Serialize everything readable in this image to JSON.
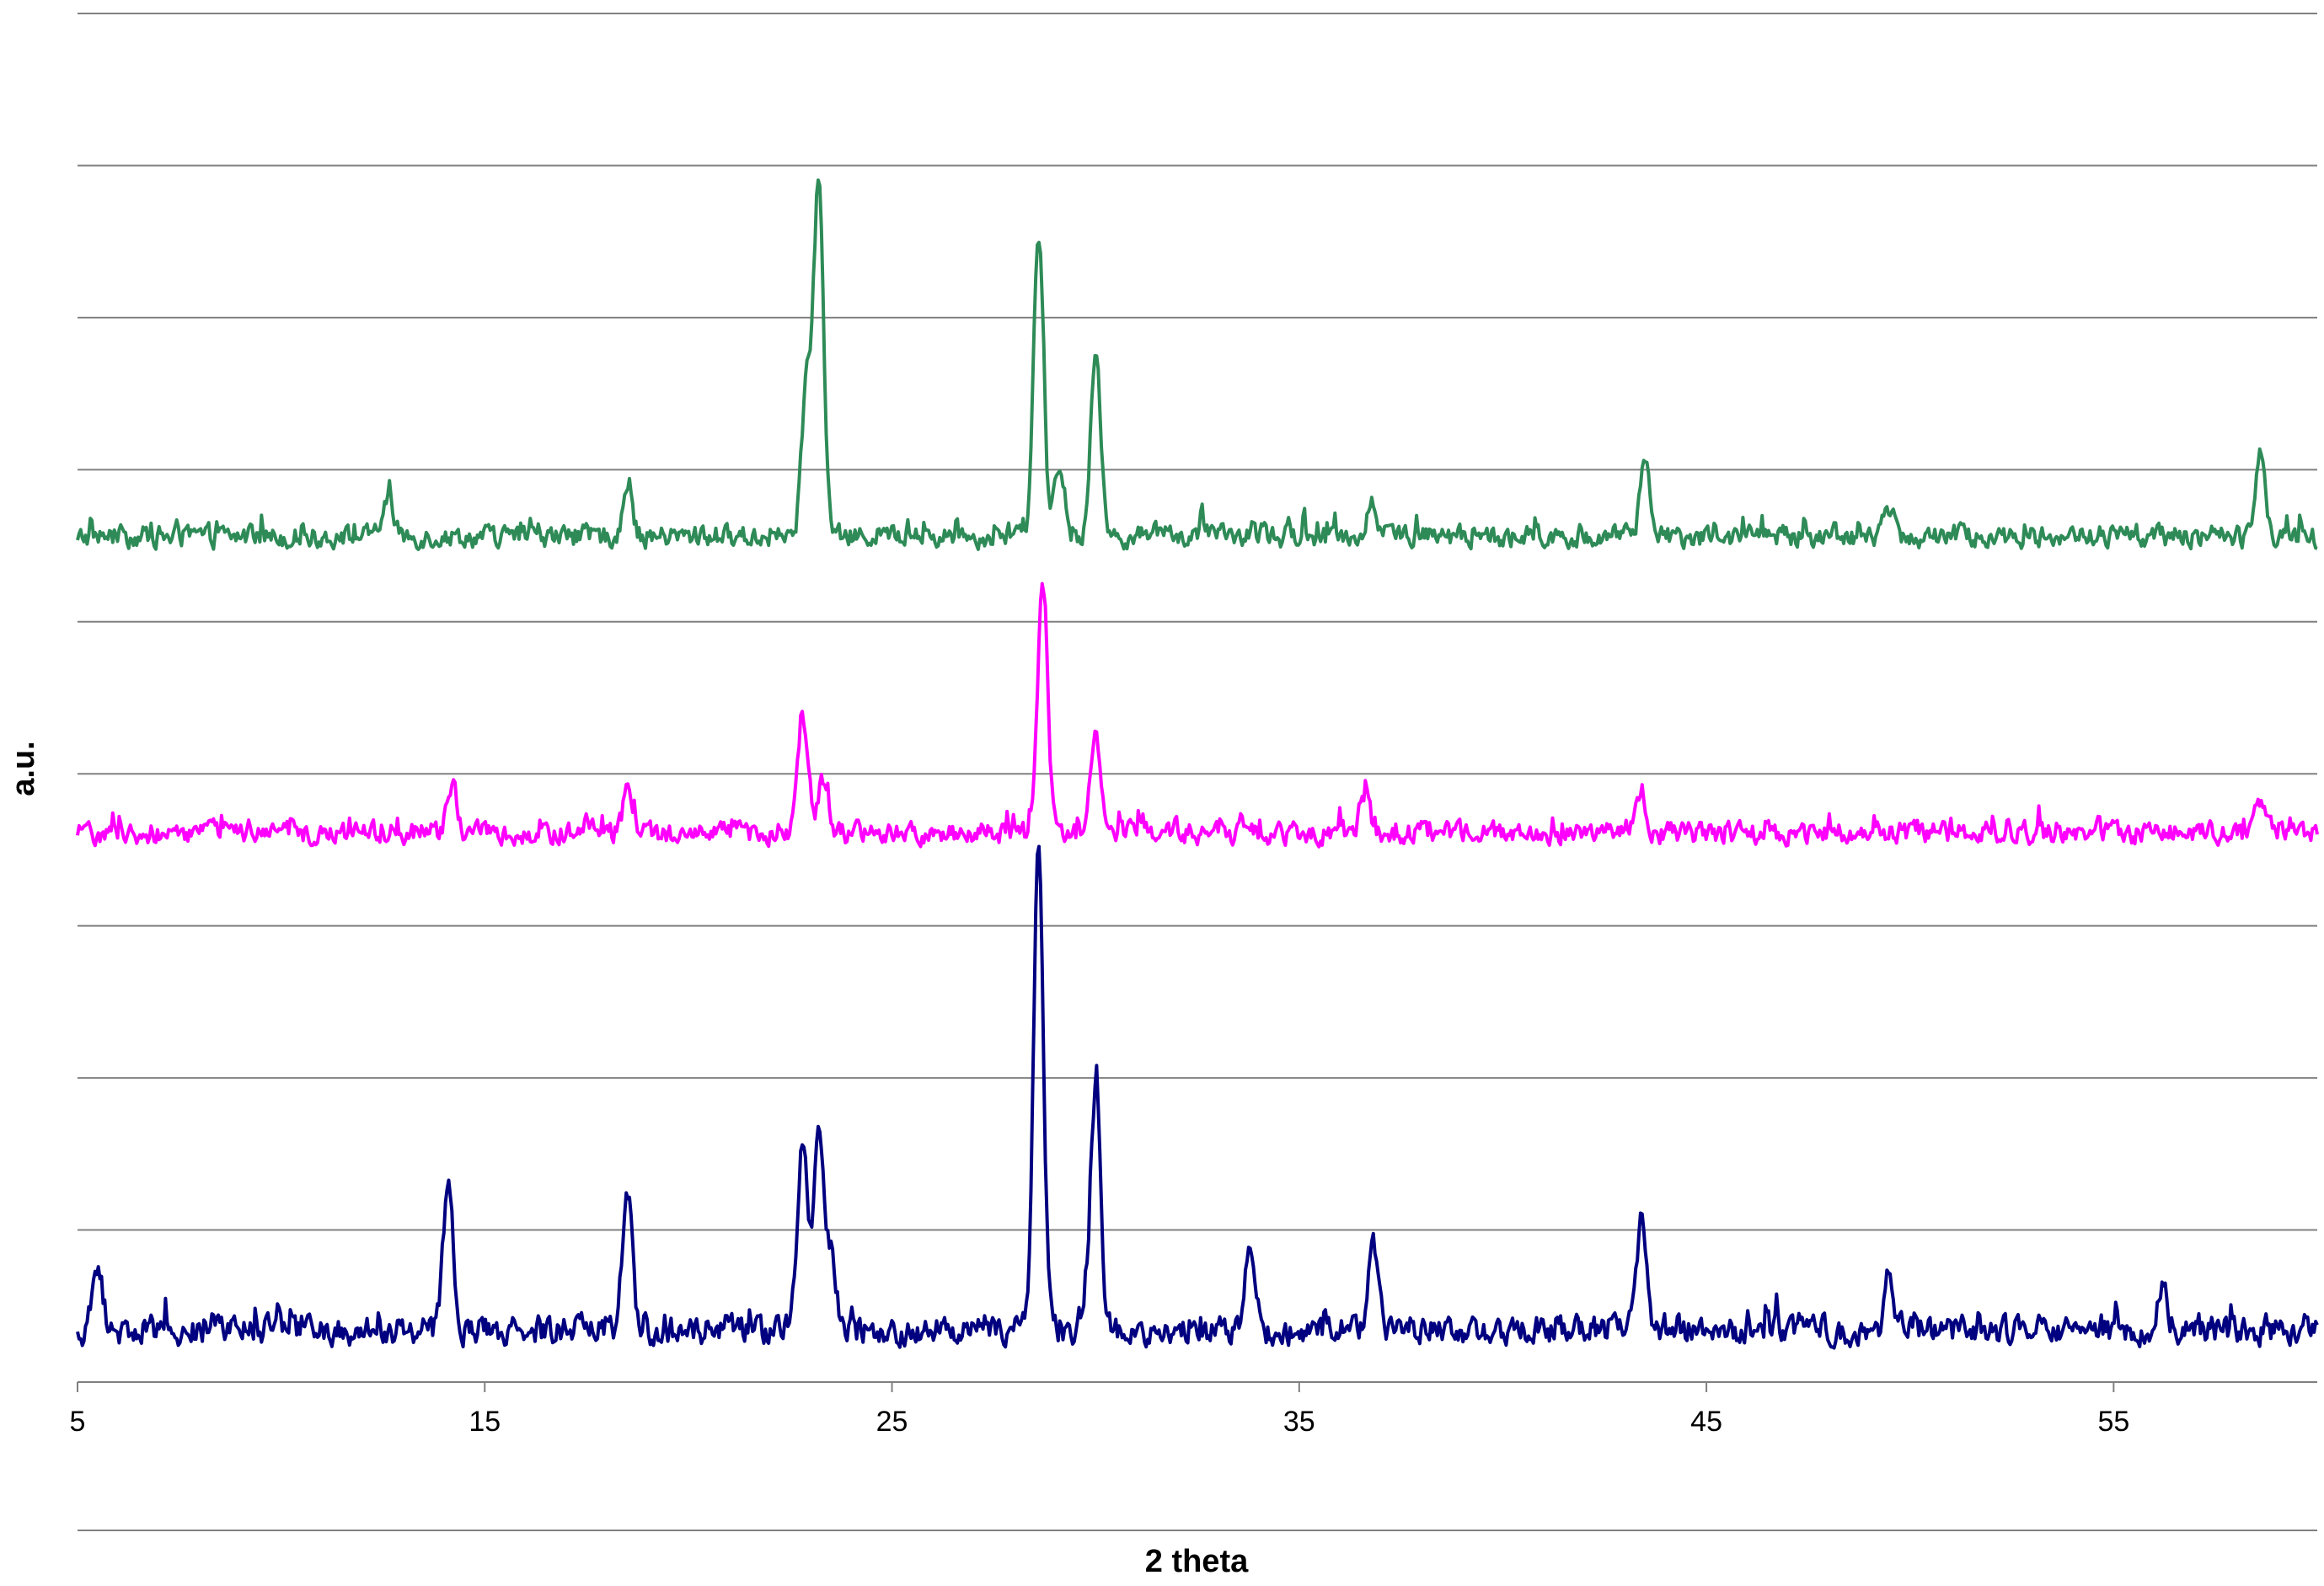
{
  "chart_data": {
    "type": "line",
    "xlabel": "2 theta",
    "ylabel": "a.u.",
    "xlim": [
      5,
      60
    ],
    "ylim": [
      0,
      9
    ],
    "x_ticks": [
      5,
      15,
      25,
      35,
      45,
      55
    ],
    "y_gridlines": [
      0,
      1,
      2,
      3,
      4,
      5,
      6,
      7,
      8,
      9
    ],
    "grid": true,
    "legend": "none",
    "y_tick_labels": "none",
    "series": [
      {
        "color": "#2e8b57",
        "baseline": 5.45,
        "noise": 0.22,
        "peaks": [
          [
            23.2,
            2.3
          ],
          [
            22.9,
            1.0
          ],
          [
            28.6,
            2.0
          ],
          [
            30.0,
            1.2
          ],
          [
            29.1,
            0.4
          ],
          [
            18.5,
            0.3
          ],
          [
            12.6,
            0.25
          ],
          [
            36.8,
            0.25
          ],
          [
            43.5,
            0.55
          ],
          [
            49.5,
            0.2
          ],
          [
            58.6,
            0.6
          ]
        ]
      },
      {
        "color": "#ff00ff",
        "baseline": 3.5,
        "noise": 0.22,
        "peaks": [
          [
            22.8,
            0.75
          ],
          [
            23.3,
            0.35
          ],
          [
            28.7,
            1.6
          ],
          [
            30.0,
            0.7
          ],
          [
            14.2,
            0.3
          ],
          [
            18.5,
            0.25
          ],
          [
            36.6,
            0.25
          ],
          [
            43.4,
            0.3
          ],
          [
            58.6,
            0.2
          ]
        ]
      },
      {
        "color": "#000080",
        "baseline": 0.2,
        "noise": 0.28,
        "peaks": [
          [
            28.6,
            3.2
          ],
          [
            30.0,
            1.6
          ],
          [
            22.8,
            1.3
          ],
          [
            23.2,
            1.3
          ],
          [
            23.5,
            0.5
          ],
          [
            14.1,
            0.95
          ],
          [
            18.5,
            0.9
          ],
          [
            33.8,
            0.55
          ],
          [
            36.8,
            0.6
          ],
          [
            43.4,
            0.7
          ],
          [
            5.5,
            0.4
          ],
          [
            49.5,
            0.3
          ],
          [
            56.2,
            0.3
          ]
        ]
      }
    ]
  }
}
